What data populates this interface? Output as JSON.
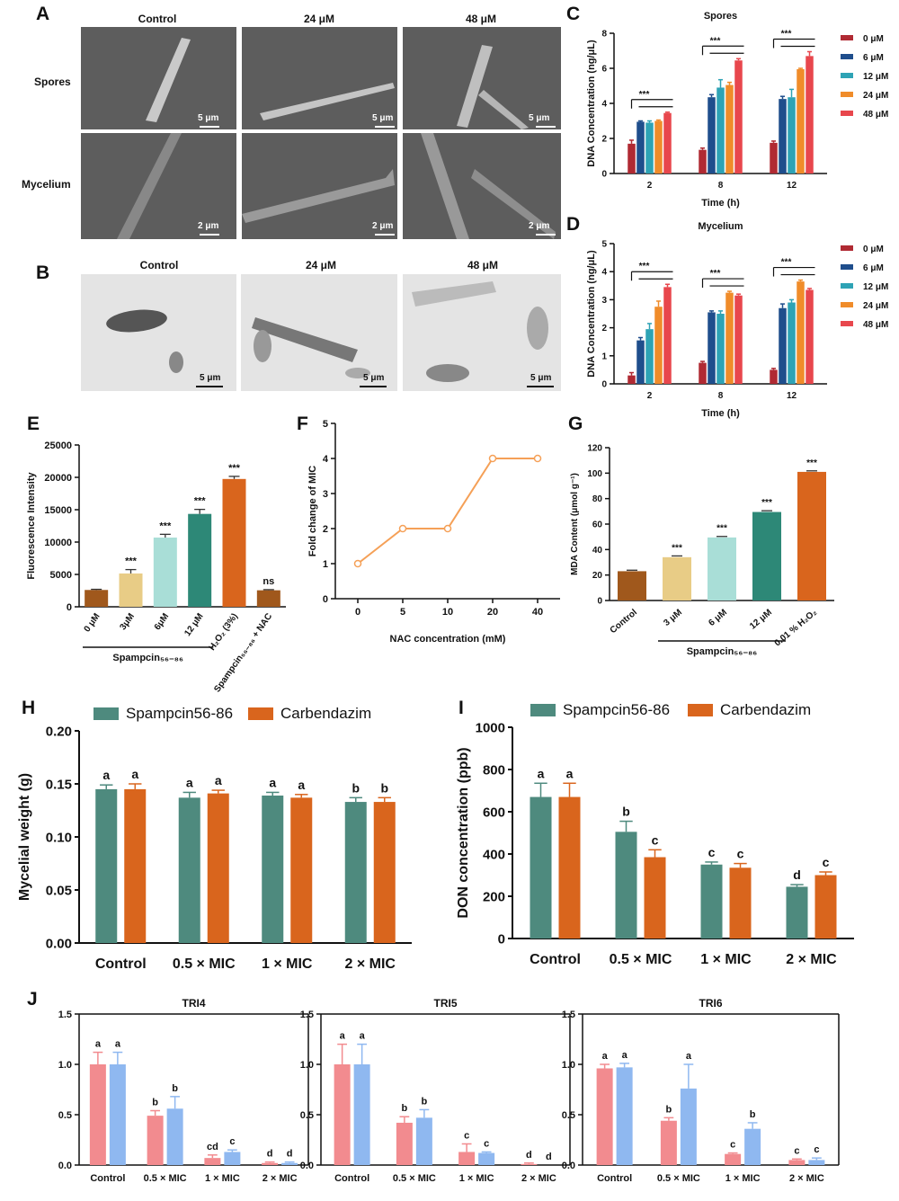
{
  "panel_letters": {
    "A": "A",
    "B": "B",
    "C": "C",
    "D": "D",
    "E": "E",
    "F": "F",
    "G": "G",
    "H": "H",
    "I": "I",
    "J": "J"
  },
  "panel_a": {
    "columns": [
      "Control",
      "24 μM",
      "48 μM"
    ],
    "rows": [
      "Spores",
      "Mycelium"
    ],
    "scale_bars": [
      [
        "5 μm",
        "5 μm",
        "5 μm"
      ],
      [
        "2 μm",
        "2 μm",
        "2 μm"
      ]
    ]
  },
  "panel_b": {
    "columns": [
      "Control",
      "24 μM",
      "48 μM"
    ],
    "scale_bars": [
      "5 μm",
      "5 μm",
      "5 μm"
    ]
  },
  "chart_data": [
    {
      "id": "C",
      "type": "bar",
      "title": "Spores",
      "xlabel": "Time (h)",
      "ylabel": "DNA Concentration (ng/μL)",
      "ylim": [
        0,
        8
      ],
      "yticks": [
        "0",
        "2",
        "4",
        "6",
        "8"
      ],
      "categories": [
        "2",
        "8",
        "12"
      ],
      "series": [
        {
          "name": "0 μM",
          "color": "#b02a33",
          "values": [
            1.7,
            1.35,
            1.75
          ],
          "err": [
            0.2,
            0.1,
            0.1
          ]
        },
        {
          "name": "6 μM",
          "color": "#1f4e8c",
          "values": [
            2.95,
            4.35,
            4.25
          ],
          "err": [
            0.05,
            0.15,
            0.15
          ]
        },
        {
          "name": "12 μM",
          "color": "#2ea3b5",
          "values": [
            2.9,
            4.9,
            4.35
          ],
          "err": [
            0.1,
            0.45,
            0.45
          ]
        },
        {
          "name": "24 μM",
          "color": "#f08c2a",
          "values": [
            3.0,
            5.05,
            5.95
          ],
          "err": [
            0.05,
            0.15,
            0.05
          ]
        },
        {
          "name": "48 μM",
          "color": "#e8474d",
          "values": [
            3.45,
            6.45,
            6.7
          ],
          "err": [
            0.05,
            0.1,
            0.25
          ]
        }
      ],
      "annotation": "***"
    },
    {
      "id": "D",
      "type": "bar",
      "title": "Mycelium",
      "xlabel": "Time (h)",
      "ylabel": "DNA Concentration (ng/μL)",
      "ylim": [
        0,
        5
      ],
      "yticks": [
        "0",
        "1",
        "2",
        "3",
        "4",
        "5"
      ],
      "categories": [
        "2",
        "8",
        "12"
      ],
      "series": [
        {
          "name": "0 μM",
          "color": "#b02a33",
          "values": [
            0.3,
            0.75,
            0.5
          ],
          "err": [
            0.1,
            0.05,
            0.05
          ]
        },
        {
          "name": "6 μM",
          "color": "#1f4e8c",
          "values": [
            1.55,
            2.55,
            2.7
          ],
          "err": [
            0.1,
            0.05,
            0.15
          ]
        },
        {
          "name": "12 μM",
          "color": "#2ea3b5",
          "values": [
            1.95,
            2.5,
            2.9
          ],
          "err": [
            0.2,
            0.1,
            0.1
          ]
        },
        {
          "name": "24 μM",
          "color": "#f08c2a",
          "values": [
            2.75,
            3.25,
            3.65
          ],
          "err": [
            0.2,
            0.05,
            0.05
          ]
        },
        {
          "name": "48 μM",
          "color": "#e8474d",
          "values": [
            3.45,
            3.15,
            3.35
          ],
          "err": [
            0.1,
            0.05,
            0.05
          ]
        }
      ],
      "annotation": "***"
    },
    {
      "id": "E",
      "type": "bar",
      "ylabel": "Fluorescence Intensity",
      "ylim": [
        0,
        25000
      ],
      "yticks": [
        "0",
        "5000",
        "10000",
        "15000",
        "20000",
        "25000"
      ],
      "categories": [
        "0 μM",
        "3μM",
        "6μM",
        "12 μM",
        "H₂O₂ (3%)",
        "Spampcin₅₆₋₈₆ + NAC"
      ],
      "values": [
        2600,
        5150,
        10700,
        14350,
        19750,
        2550
      ],
      "err": [
        100,
        600,
        500,
        700,
        400,
        100
      ],
      "colors": [
        "#a0581c",
        "#e8cc86",
        "#a9ded7",
        "#2d8877",
        "#d9651d",
        "#a0581c"
      ],
      "labels": [
        "",
        "***",
        "***",
        "***",
        "***",
        "ns"
      ],
      "group_label": "Spampcin₅₆₋₈₆"
    },
    {
      "id": "F",
      "type": "line",
      "xlabel": "NAC concentration (mM)",
      "ylabel": "Fold change of MIC",
      "ylim": [
        0,
        5
      ],
      "yticks": [
        "0",
        "1",
        "2",
        "3",
        "4",
        "5"
      ],
      "categories": [
        "0",
        "5",
        "10",
        "20",
        "40"
      ],
      "values": [
        1,
        2,
        2,
        4,
        4
      ],
      "color": "#f5a057"
    },
    {
      "id": "G",
      "type": "bar",
      "ylabel": "MDA Content (μmol g⁻¹)",
      "ylim": [
        0,
        120
      ],
      "yticks": [
        "0",
        "20",
        "40",
        "60",
        "80",
        "100",
        "120"
      ],
      "categories": [
        "Control",
        "3 μM",
        "6 μM",
        "12 μM",
        "0.01 % H₂O₂"
      ],
      "values": [
        23,
        34,
        49.5,
        69.5,
        101
      ],
      "err": [
        0.8,
        1,
        0.8,
        1,
        0.8
      ],
      "colors": [
        "#a0581c",
        "#e8cc86",
        "#a9ded7",
        "#2d8877",
        "#d9651d"
      ],
      "labels": [
        "",
        "***",
        "***",
        "***",
        "***"
      ],
      "group_label": "Spampcin₅₆₋₈₆"
    },
    {
      "id": "H",
      "type": "bar",
      "ylabel": "Mycelial weight (g)",
      "ylim": [
        0,
        0.2
      ],
      "yticks": [
        "0.00",
        "0.05",
        "0.10",
        "0.15",
        "0.20"
      ],
      "categories": [
        "Control",
        "0.5 × MIC",
        "1 × MIC",
        "2 × MIC"
      ],
      "series": [
        {
          "name": "Spampcin56-86",
          "color": "#4e8a7e",
          "values": [
            0.145,
            0.137,
            0.139,
            0.133
          ],
          "err": [
            0.004,
            0.005,
            0.003,
            0.004
          ],
          "letters": [
            "a",
            "a",
            "a",
            "b"
          ]
        },
        {
          "name": "Carbendazim",
          "color": "#d9651d",
          "values": [
            0.145,
            0.141,
            0.137,
            0.133
          ],
          "err": [
            0.005,
            0.003,
            0.003,
            0.004
          ],
          "letters": [
            "a",
            "a",
            "a",
            "b"
          ]
        }
      ]
    },
    {
      "id": "I",
      "type": "bar",
      "ylabel": "DON concentration (ppb)",
      "ylim": [
        0,
        1000
      ],
      "yticks": [
        "0",
        "200",
        "400",
        "600",
        "800",
        "1000"
      ],
      "categories": [
        "Control",
        "0.5 × MIC",
        "1 × MIC",
        "2 × MIC"
      ],
      "series": [
        {
          "name": "Spampcin56-86",
          "color": "#4e8a7e",
          "values": [
            670,
            505,
            350,
            245
          ],
          "err": [
            65,
            50,
            12,
            10
          ],
          "letters": [
            "a",
            "b",
            "c",
            "d"
          ]
        },
        {
          "name": "Carbendazim",
          "color": "#d9651d",
          "values": [
            670,
            385,
            335,
            300
          ],
          "err": [
            65,
            35,
            20,
            15
          ],
          "letters": [
            "a",
            "c",
            "c",
            "c"
          ]
        }
      ]
    },
    {
      "id": "J-TRI4",
      "type": "bar",
      "title": "TRI4",
      "ylim": [
        0,
        1.5
      ],
      "yticks": [
        "0.0",
        "0.5",
        "1.0",
        "1.5"
      ],
      "categories": [
        "Control",
        "0.5 × MIC",
        "1 × MIC",
        "2 × MIC"
      ],
      "series": [
        {
          "color": "#f28b8f",
          "values": [
            1.0,
            0.49,
            0.07,
            0.02
          ],
          "err": [
            0.12,
            0.05,
            0.03,
            0.01
          ],
          "letters": [
            "a",
            "b",
            "cd",
            "d"
          ]
        },
        {
          "color": "#8fb8f0",
          "values": [
            1.0,
            0.56,
            0.13,
            0.02
          ],
          "err": [
            0.12,
            0.12,
            0.02,
            0.01
          ],
          "letters": [
            "a",
            "b",
            "c",
            "d"
          ]
        }
      ]
    },
    {
      "id": "J-TRI5",
      "type": "bar",
      "title": "TRI5",
      "ylim": [
        0,
        1.5
      ],
      "yticks": [
        "0.0",
        "0.5",
        "1.0",
        "1.5"
      ],
      "categories": [
        "Control",
        "0.5 × MIC",
        "1 × MIC",
        "2 × MIC"
      ],
      "series": [
        {
          "color": "#f28b8f",
          "values": [
            1.0,
            0.42,
            0.13,
            0.01
          ],
          "err": [
            0.2,
            0.06,
            0.08,
            0.01
          ],
          "letters": [
            "a",
            "b",
            "c",
            "d"
          ]
        },
        {
          "color": "#8fb8f0",
          "values": [
            1.0,
            0.47,
            0.12,
            0.0
          ],
          "err": [
            0.2,
            0.08,
            0.01,
            0.0
          ],
          "letters": [
            "a",
            "b",
            "c",
            "d"
          ]
        }
      ]
    },
    {
      "id": "J-TRI6",
      "type": "bar",
      "title": "TRI6",
      "ylim": [
        0,
        1.5
      ],
      "yticks": [
        "0.0",
        "0.5",
        "1.0",
        "1.5"
      ],
      "categories": [
        "Control",
        "0.5 × MIC",
        "1 × MIC",
        "2 × MIC"
      ],
      "series": [
        {
          "color": "#f28b8f",
          "values": [
            0.96,
            0.44,
            0.11,
            0.05
          ],
          "err": [
            0.04,
            0.03,
            0.01,
            0.01
          ],
          "letters": [
            "a",
            "b",
            "c",
            "c"
          ]
        },
        {
          "color": "#8fb8f0",
          "values": [
            0.97,
            0.76,
            0.36,
            0.05
          ],
          "err": [
            0.04,
            0.24,
            0.06,
            0.02
          ],
          "letters": [
            "a",
            "a",
            "b",
            "c"
          ]
        }
      ]
    }
  ]
}
